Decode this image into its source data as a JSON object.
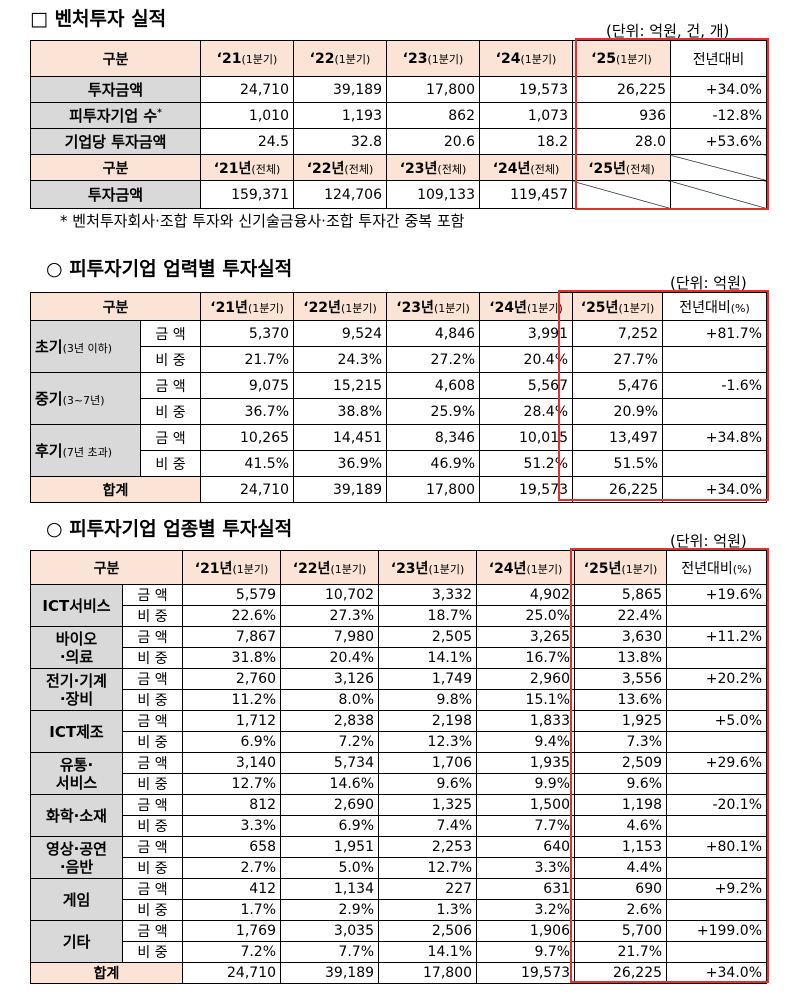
{
  "section1": {
    "title": "□ 벤처투자 실적",
    "unit": "(단위: 억원, 건, 개)",
    "header_label": "구분",
    "years": [
      {
        "yr": "‘21",
        "q": "(1분기)"
      },
      {
        "yr": "‘22",
        "q": "(1분기)"
      },
      {
        "yr": "‘23",
        "q": "(1분기)"
      },
      {
        "yr": "‘24",
        "q": "(1분기)"
      },
      {
        "yr": "‘25",
        "q": "(1분기)"
      }
    ],
    "yoy_label": "전년대비",
    "rows": [
      {
        "label": "투자금액",
        "values": [
          "24,710",
          "39,189",
          "17,800",
          "19,573",
          "26,225"
        ],
        "yoy": "+34.0%"
      },
      {
        "label": "피투자기업 수",
        "sup": "*",
        "values": [
          "1,010",
          "1,193",
          "862",
          "1,073",
          "936"
        ],
        "yoy": "-12.8%"
      },
      {
        "label": "기업당 투자금액",
        "values": [
          "24.5",
          "32.8",
          "20.6",
          "18.2",
          "28.0"
        ],
        "yoy": "+53.6%"
      }
    ],
    "header2_label": "구분",
    "years2": [
      {
        "yr": "‘21년",
        "q": "(전체)"
      },
      {
        "yr": "‘22년",
        "q": "(전체)"
      },
      {
        "yr": "‘23년",
        "q": "(전체)"
      },
      {
        "yr": "‘24년",
        "q": "(전체)"
      },
      {
        "yr": "‘25년",
        "q": "(전체)"
      }
    ],
    "row2": {
      "label": "투자금액",
      "values": [
        "159,371",
        "124,706",
        "109,133",
        "119,457"
      ]
    },
    "note": "* 벤처투자회사·조합 투자와 신기술금융사·조합 투자간 중복 포함"
  },
  "section2": {
    "title": "○ 피투자기업 업력별 투자실적",
    "unit": "(단위: 억원)",
    "header_label": "구분",
    "years": [
      {
        "yr": "‘21년",
        "q": "(1분기)"
      },
      {
        "yr": "‘22년",
        "q": "(1분기)"
      },
      {
        "yr": "‘23년",
        "q": "(1분기)"
      },
      {
        "yr": "‘24년",
        "q": "(1분기)"
      },
      {
        "yr": "‘25년",
        "q": "(1분기)"
      }
    ],
    "yoy_label": "전년대비",
    "yoy_unit": "(%)",
    "amount_label": "금 액",
    "share_label": "비 중",
    "groups": [
      {
        "name": "초기",
        "sub": "(3년 이하)",
        "amount": [
          "5,370",
          "9,524",
          "4,846",
          "3,991",
          "7,252"
        ],
        "yoy": "+81.7%",
        "share": [
          "21.7%",
          "24.3%",
          "27.2%",
          "20.4%",
          "27.7%"
        ]
      },
      {
        "name": "중기",
        "sub": "(3~7년)",
        "amount": [
          "9,075",
          "15,215",
          "4,608",
          "5,567",
          "5,476"
        ],
        "yoy": "-1.6%",
        "share": [
          "36.7%",
          "38.8%",
          "25.9%",
          "28.4%",
          "20.9%"
        ]
      },
      {
        "name": "후기",
        "sub": "(7년 초과)",
        "amount": [
          "10,265",
          "14,451",
          "8,346",
          "10,015",
          "13,497"
        ],
        "yoy": "+34.8%",
        "share": [
          "41.5%",
          "36.9%",
          "46.9%",
          "51.2%",
          "51.5%"
        ]
      }
    ],
    "total": {
      "label": "합계",
      "values": [
        "24,710",
        "39,189",
        "17,800",
        "19,573",
        "26,225"
      ],
      "yoy": "+34.0%"
    }
  },
  "section3": {
    "title": "○ 피투자기업 업종별 투자실적",
    "unit": "(단위: 억원)",
    "header_label": "구분",
    "years": [
      {
        "yr": "‘21년",
        "q": "(1분기)"
      },
      {
        "yr": "‘22년",
        "q": "(1분기)"
      },
      {
        "yr": "‘23년",
        "q": "(1분기)"
      },
      {
        "yr": "‘24년",
        "q": "(1분기)"
      },
      {
        "yr": "‘25년",
        "q": "(1분기)"
      }
    ],
    "yoy_label": "전년대비",
    "yoy_unit": "(%)",
    "amount_label": "금 액",
    "share_label": "비 중",
    "groups": [
      {
        "name": [
          "ICT서비스"
        ],
        "amount": [
          "5,579",
          "10,702",
          "3,332",
          "4,902",
          "5,865"
        ],
        "yoy": "+19.6%",
        "share": [
          "22.6%",
          "27.3%",
          "18.7%",
          "25.0%",
          "22.4%"
        ]
      },
      {
        "name": [
          "바이오",
          "·의료"
        ],
        "amount": [
          "7,867",
          "7,980",
          "2,505",
          "3,265",
          "3,630"
        ],
        "yoy": "+11.2%",
        "share": [
          "31.8%",
          "20.4%",
          "14.1%",
          "16.7%",
          "13.8%"
        ]
      },
      {
        "name": [
          "전기·기계",
          "·장비"
        ],
        "amount": [
          "2,760",
          "3,126",
          "1,749",
          "2,960",
          "3,556"
        ],
        "yoy": "+20.2%",
        "share": [
          "11.2%",
          "8.0%",
          "9.8%",
          "15.1%",
          "13.6%"
        ]
      },
      {
        "name": [
          "ICT제조"
        ],
        "amount": [
          "1,712",
          "2,838",
          "2,198",
          "1,833",
          "1,925"
        ],
        "yoy": "+5.0%",
        "share": [
          "6.9%",
          "7.2%",
          "12.3%",
          "9.4%",
          "7.3%"
        ]
      },
      {
        "name": [
          "유통·",
          "서비스"
        ],
        "amount": [
          "3,140",
          "5,734",
          "1,706",
          "1,935",
          "2,509"
        ],
        "yoy": "+29.6%",
        "share": [
          "12.7%",
          "14.6%",
          "9.6%",
          "9.9%",
          "9.6%"
        ]
      },
      {
        "name": [
          "화학·소재"
        ],
        "amount": [
          "812",
          "2,690",
          "1,325",
          "1,500",
          "1,198"
        ],
        "yoy": "-20.1%",
        "share": [
          "3.3%",
          "6.9%",
          "7.4%",
          "7.7%",
          "4.6%"
        ]
      },
      {
        "name": [
          "영상·공연",
          "·음반"
        ],
        "amount": [
          "658",
          "1,951",
          "2,253",
          "640",
          "1,153"
        ],
        "yoy": "+80.1%",
        "share": [
          "2.7%",
          "5.0%",
          "12.7%",
          "3.3%",
          "4.4%"
        ]
      },
      {
        "name": [
          "게임"
        ],
        "amount": [
          "412",
          "1,134",
          "227",
          "631",
          "690"
        ],
        "yoy": "+9.2%",
        "share": [
          "1.7%",
          "2.9%",
          "1.3%",
          "3.2%",
          "2.6%"
        ]
      },
      {
        "name": [
          "기타"
        ],
        "amount": [
          "1,769",
          "3,035",
          "2,506",
          "1,906",
          "5,700"
        ],
        "yoy": "+199.0%",
        "share": [
          "7.2%",
          "7.7%",
          "14.1%",
          "9.7%",
          "21.7%"
        ]
      }
    ],
    "total": {
      "label": "합계",
      "values": [
        "24,710",
        "39,189",
        "17,800",
        "19,573",
        "26,225"
      ],
      "yoy": "+34.0%"
    }
  }
}
